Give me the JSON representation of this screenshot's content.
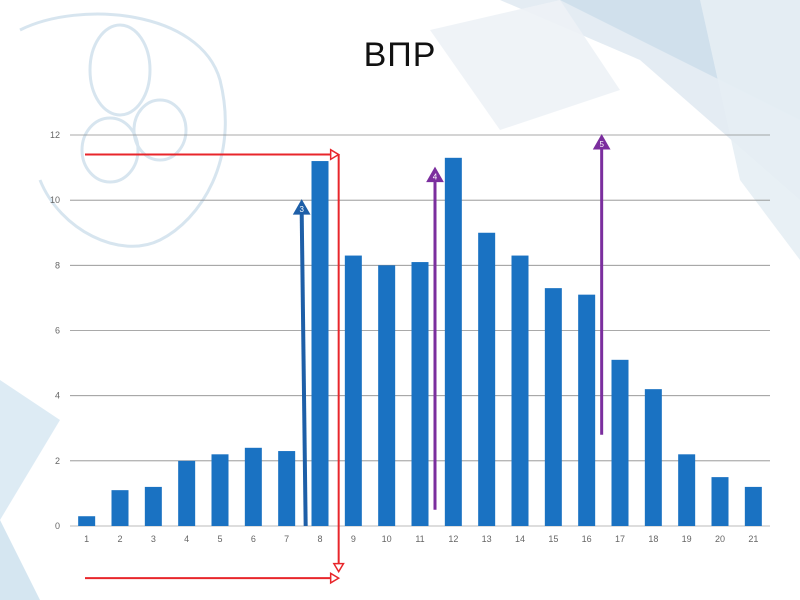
{
  "slide": {
    "title": "ВПР"
  },
  "chart_data": {
    "type": "bar",
    "categories": [
      "1",
      "2",
      "3",
      "4",
      "5",
      "6",
      "7",
      "8",
      "9",
      "10",
      "11",
      "12",
      "13",
      "14",
      "15",
      "16",
      "17",
      "18",
      "19",
      "20",
      "21"
    ],
    "values": [
      0.3,
      1.1,
      1.2,
      2.0,
      2.2,
      2.4,
      2.3,
      11.2,
      8.3,
      8.0,
      8.1,
      11.3,
      9.0,
      8.3,
      7.3,
      7.1,
      5.1,
      4.2,
      2.2,
      1.5,
      1.2
    ],
    "ylim": [
      0,
      12
    ],
    "yticks": [
      "0",
      "2",
      "4",
      "6",
      "8",
      "10",
      "12"
    ],
    "grid": true,
    "bar_color": "#1a72c2",
    "annotations": [
      {
        "kind": "arrow",
        "color": "#e8262b",
        "label": "",
        "from_x": "1",
        "to_x": "8",
        "y": 11.4
      },
      {
        "kind": "arrow",
        "color": "#e8262b",
        "label": "",
        "from_x": "1",
        "to_x": "8",
        "y": -1.6
      },
      {
        "kind": "arrow",
        "color": "#e8262b",
        "label": "",
        "from_x": "8",
        "to_x": "8",
        "y_from": 11.4,
        "y_to": -1.4
      },
      {
        "kind": "arrow",
        "color": "#1e5fa8",
        "label": "3",
        "x": "7",
        "y_from": 0,
        "y_to": 10.0
      },
      {
        "kind": "arrow",
        "color": "#7b2e9e",
        "label": "4",
        "x": "11",
        "y_from": 0.5,
        "y_to": 11.0
      },
      {
        "kind": "arrow",
        "color": "#7b2e9e",
        "label": "5",
        "x": "16",
        "y_from": 2.8,
        "y_to": 12.0
      }
    ]
  }
}
